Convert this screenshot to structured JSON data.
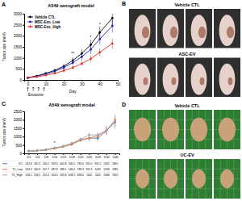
{
  "chart_data": [
    {
      "type": "line",
      "panel_label": "A",
      "title": "A549 xenograft model",
      "x_label": "Day",
      "y_label": "Tumor size (mm³)",
      "x": [
        0,
        5,
        10,
        15,
        20,
        25,
        30,
        35,
        40,
        47
      ],
      "series": [
        {
          "name": "Vehicle CTL",
          "color": "#000000",
          "marker": "circle",
          "values": [
            100,
            180,
            300,
            430,
            620,
            880,
            1200,
            1600,
            2150,
            2800
          ],
          "errors": [
            20,
            30,
            50,
            70,
            100,
            130,
            180,
            220,
            280,
            330
          ]
        },
        {
          "name": "MSC-Exo_Low",
          "color": "#1f1fb4",
          "marker": "square",
          "values": [
            100,
            170,
            270,
            390,
            560,
            780,
            1050,
            1380,
            1850,
            2450
          ],
          "errors": [
            20,
            30,
            45,
            60,
            90,
            120,
            160,
            200,
            250,
            300
          ]
        },
        {
          "name": "MSC-Exo_High",
          "color": "#e0302a",
          "marker": "triangle",
          "values": [
            100,
            140,
            210,
            300,
            420,
            560,
            740,
            960,
            1250,
            1650
          ],
          "errors": [
            20,
            25,
            35,
            50,
            70,
            90,
            120,
            150,
            190,
            240
          ]
        }
      ],
      "xlim": [
        -2,
        50
      ],
      "xticks": [
        0,
        10,
        20,
        30,
        40,
        50
      ],
      "ylim": [
        0,
        3000
      ],
      "yticks": [
        0,
        500,
        1000,
        1500,
        2000,
        2500,
        3000
      ],
      "legend": "upper left",
      "exosome": {
        "text": "Exosome",
        "days": [
          0,
          3,
          6,
          9
        ]
      },
      "annotations": [
        {
          "text": "**",
          "x": 25,
          "y": 1150
        },
        {
          "text": "*",
          "x": 35,
          "y": 1850
        },
        {
          "text": "*",
          "x": 40,
          "y": 2450
        }
      ]
    },
    {
      "type": "line",
      "panel_label": "C",
      "title": "A549 xenograft model",
      "y_label": "Tumor size (mm³)",
      "categories": [
        "D1",
        "D4",
        "D8",
        "D11",
        "D15",
        "D18",
        "D22",
        "D25",
        "D29",
        "D32",
        "D46"
      ],
      "series": [
        {
          "name": "VC",
          "color": "#4472c4",
          "marker": "circle",
          "values": [
            132.8,
            162.5,
            216.2,
            319,
            402.8,
            540.5,
            784.4,
            911,
            905.5,
            1342,
            1865
          ],
          "value_labels": [
            "132.8",
            "162.5",
            "216.2",
            "319.0",
            "402.8",
            "540.5",
            "784.4",
            "911.0",
            "905.5",
            "1342",
            "1865"
          ],
          "errors": [
            10,
            15,
            25,
            40,
            60,
            80,
            120,
            150,
            180,
            250,
            350
          ]
        },
        {
          "name": "T1_Low",
          "color": "#ed7d31",
          "marker": "circle",
          "values": [
            143.3,
            160.9,
            207.7,
            287.8,
            398.1,
            546,
            789.4,
            911.3,
            1045,
            1358,
            1985
          ],
          "value_labels": [
            "143.3",
            "160.9",
            "207.7",
            "287.8",
            "398.1",
            "546.0",
            "789.4",
            "911.3",
            "1045",
            "1358",
            "1985"
          ],
          "errors": [
            10,
            15,
            25,
            40,
            60,
            80,
            120,
            150,
            180,
            250,
            350
          ]
        },
        {
          "name": "T2_High",
          "color": "#a5a5a5",
          "marker": "circle",
          "values": [
            128.2,
            158.1,
            215.4,
            324.3,
            432.8,
            608.2,
            838,
            1100,
            1105,
            1366,
            1905
          ],
          "value_labels": [
            "128.2",
            "158.1",
            "215.4",
            "324.3",
            "432.8",
            "608.2",
            "838.0",
            "1100",
            "1105",
            "1366",
            "1905"
          ],
          "errors": [
            10,
            15,
            25,
            40,
            60,
            80,
            120,
            150,
            180,
            250,
            350
          ]
        }
      ],
      "ylim": [
        0,
        2500
      ],
      "yticks": [
        0,
        500,
        1000,
        1500,
        2000,
        2500
      ],
      "annotations": [
        {
          "text": "*",
          "category": "D11",
          "y": 520
        }
      ]
    }
  ],
  "photo_panels": [
    {
      "panel_label": "B",
      "groups": [
        {
          "label": "Vehicle CTL",
          "count": 4
        },
        {
          "label": "ASC-EV",
          "count": 4
        }
      ]
    },
    {
      "panel_label": "D",
      "groups": [
        {
          "label": "Vehicle CTL",
          "count": 4
        },
        {
          "label": "UC-EV",
          "count": 4
        }
      ]
    }
  ]
}
